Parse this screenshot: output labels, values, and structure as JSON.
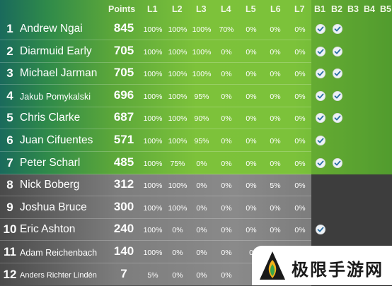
{
  "header": {
    "points_label": "Points",
    "level_labels": [
      "L1",
      "L2",
      "L3",
      "L4",
      "L5",
      "L6",
      "L7"
    ],
    "bonus_labels": [
      "B1",
      "B2",
      "B3",
      "B4",
      "B5"
    ]
  },
  "rows": [
    {
      "rank": "1",
      "name": "Andrew Ngai",
      "points": "845",
      "levels": [
        "100%",
        "100%",
        "100%",
        "70%",
        "0%",
        "0%",
        "0%"
      ],
      "bonus": [
        true,
        true
      ]
    },
    {
      "rank": "2",
      "name": "Diarmuid Early",
      "points": "705",
      "levels": [
        "100%",
        "100%",
        "100%",
        "0%",
        "0%",
        "0%",
        "0%"
      ],
      "bonus": [
        true,
        true
      ]
    },
    {
      "rank": "3",
      "name": "Michael Jarman",
      "points": "705",
      "levels": [
        "100%",
        "100%",
        "100%",
        "0%",
        "0%",
        "0%",
        "0%"
      ],
      "bonus": [
        true,
        true
      ]
    },
    {
      "rank": "4",
      "name": "Jakub Pomykalski",
      "points": "696",
      "levels": [
        "100%",
        "100%",
        "95%",
        "0%",
        "0%",
        "0%",
        "0%"
      ],
      "bonus": [
        true,
        true
      ]
    },
    {
      "rank": "5",
      "name": "Chris Clarke",
      "points": "687",
      "levels": [
        "100%",
        "100%",
        "90%",
        "0%",
        "0%",
        "0%",
        "0%"
      ],
      "bonus": [
        true,
        true
      ]
    },
    {
      "rank": "6",
      "name": "Juan Cifuentes",
      "points": "571",
      "levels": [
        "100%",
        "100%",
        "95%",
        "0%",
        "0%",
        "0%",
        "0%"
      ],
      "bonus": [
        true
      ]
    },
    {
      "rank": "7",
      "name": "Peter Scharl",
      "points": "485",
      "levels": [
        "100%",
        "75%",
        "0%",
        "0%",
        "0%",
        "0%",
        "0%"
      ],
      "bonus": [
        true,
        true
      ]
    },
    {
      "rank": "8",
      "name": "Nick Boberg",
      "points": "312",
      "levels": [
        "100%",
        "100%",
        "0%",
        "0%",
        "0%",
        "5%",
        "0%"
      ],
      "bonus": []
    },
    {
      "rank": "9",
      "name": "Joshua Bruce",
      "points": "300",
      "levels": [
        "100%",
        "100%",
        "0%",
        "0%",
        "0%",
        "0%",
        "0%"
      ],
      "bonus": []
    },
    {
      "rank": "10",
      "name": "Eric Ashton",
      "points": "240",
      "levels": [
        "100%",
        "0%",
        "0%",
        "0%",
        "0%",
        "0%",
        "0%"
      ],
      "bonus": [
        true
      ]
    },
    {
      "rank": "11",
      "name": "Adam Reichenbach",
      "points": "140",
      "levels": [
        "100%",
        "0%",
        "0%",
        "0%",
        "0",
        "",
        ""
      ],
      "bonus": []
    },
    {
      "rank": "12",
      "name": "Anders Richter Lindén",
      "points": "7",
      "levels": [
        "5%",
        "0%",
        "0%",
        "0%",
        "",
        "",
        ""
      ],
      "bonus": []
    }
  ],
  "watermark": {
    "text": "极限手游网"
  },
  "colors": {
    "top_band": "#7cc23a",
    "bottom_band": "#8a8a8a",
    "check_mark": "#2b6fa3"
  }
}
